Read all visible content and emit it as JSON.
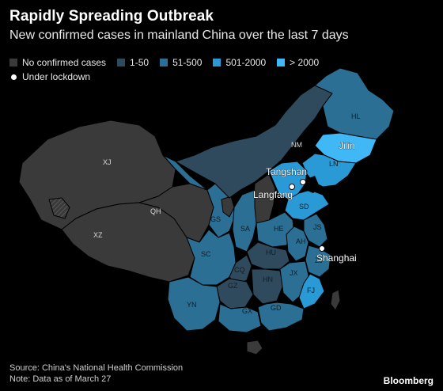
{
  "header": {
    "title": "Rapidly Spreading Outbreak",
    "subtitle": "New confirmed cases in mainland China over the last 7 days"
  },
  "legend": {
    "items": [
      {
        "label": "No confirmed cases",
        "color": "#3a3a3a"
      },
      {
        "label": "1-50",
        "color": "#2f4a5c"
      },
      {
        "label": "51-500",
        "color": "#2b6f94"
      },
      {
        "label": "501-2000",
        "color": "#2a9ad6"
      },
      {
        "label": "> 2000",
        "color": "#40b8f5"
      }
    ],
    "lockdown_label": "Under lockdown"
  },
  "map": {
    "provinces": [
      {
        "code": "XJ",
        "category": "No confirmed cases"
      },
      {
        "code": "XZ",
        "category": "No confirmed cases"
      },
      {
        "code": "QH",
        "category": "No confirmed cases"
      },
      {
        "code": "NM",
        "category": "1-50"
      },
      {
        "code": "HL",
        "category": "51-500"
      },
      {
        "code": "Jilin",
        "category": "> 2000"
      },
      {
        "code": "LN",
        "category": "501-2000"
      },
      {
        "code": "SD",
        "category": "501-2000"
      },
      {
        "code": "HE",
        "category": "51-500"
      },
      {
        "code": "JS",
        "category": "51-500"
      },
      {
        "code": "AH",
        "category": "51-500"
      },
      {
        "code": "ZJ",
        "category": "51-500"
      },
      {
        "code": "SA",
        "category": "51-500"
      },
      {
        "code": "GS",
        "category": "51-500"
      },
      {
        "code": "SC",
        "category": "51-500"
      },
      {
        "code": "HU",
        "category": "1-50"
      },
      {
        "code": "CQ",
        "category": "1-50"
      },
      {
        "code": "HN",
        "category": "1-50"
      },
      {
        "code": "JX",
        "category": "51-500"
      },
      {
        "code": "FJ",
        "category": "501-2000"
      },
      {
        "code": "GZ",
        "category": "1-50"
      },
      {
        "code": "YN",
        "category": "51-500"
      },
      {
        "code": "GX",
        "category": "51-500"
      },
      {
        "code": "GD",
        "category": "51-500"
      }
    ],
    "cities": [
      {
        "name": "Tangshan"
      },
      {
        "name": "Langfang"
      },
      {
        "name": "Shanghai"
      }
    ]
  },
  "footer": {
    "source": "Source: China's National Health Commission",
    "note": "Note: Data as of March 27",
    "brand": "Bloomberg"
  }
}
